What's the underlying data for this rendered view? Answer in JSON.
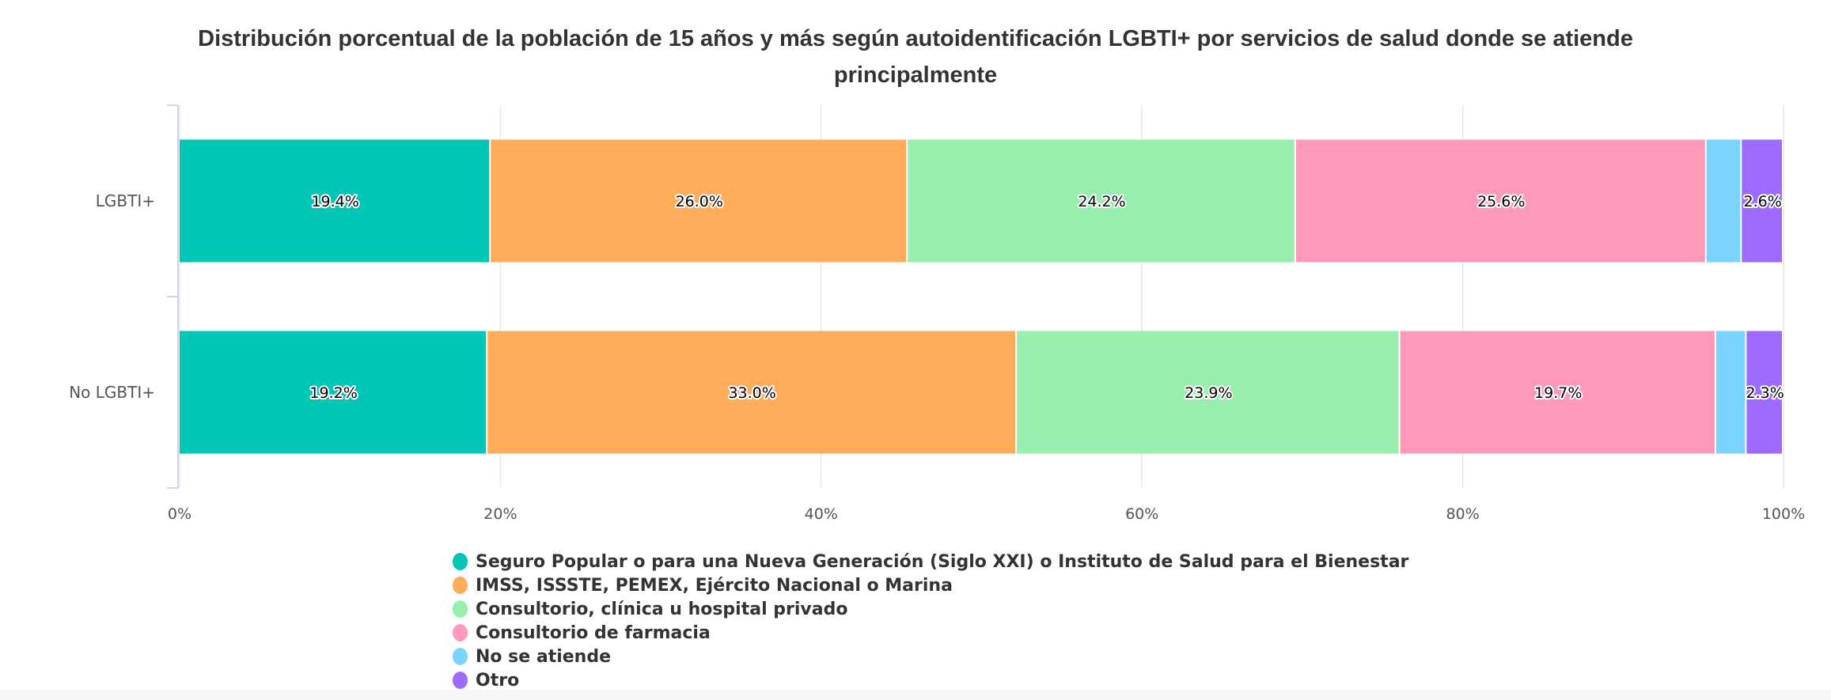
{
  "chart_data": {
    "type": "bar",
    "orientation": "horizontal",
    "stacked": "percent",
    "title": "Distribución porcentual de la población de 15 años y más según autoidentificación LGBTI+ por servicios de salud donde se atiende principalmente",
    "title_lines": [
      "Distribución porcentual de la población de 15 años y más según autoidentificación LGBTI+ por servicios de salud donde se atiende",
      "principalmente"
    ],
    "categories": [
      "LGBTI+",
      "No LGBTI+"
    ],
    "xlim": [
      0,
      100
    ],
    "x_ticks": [
      "0%",
      "20%",
      "40%",
      "60%",
      "80%",
      "100%"
    ],
    "grid": true,
    "legend_position": "bottom",
    "series": [
      {
        "name": "Seguro Popular o para una Nueva Generación (Siglo XXI) o Instituto de Salud para el Bienestar",
        "color": "#00c6b6",
        "values": [
          19.4,
          19.2
        ],
        "labels": [
          "19.4%",
          "19.2%"
        ]
      },
      {
        "name": "IMSS, ISSSTE, PEMEX, Ejército Nacional o Marina",
        "color": "#ffad5a",
        "values": [
          26.0,
          33.0
        ],
        "labels": [
          "26.0%",
          "33.0%"
        ]
      },
      {
        "name": "Consultorio, clínica u hospital privado",
        "color": "#98eeac",
        "values": [
          24.2,
          23.9
        ],
        "labels": [
          "24.2%",
          "23.9%"
        ]
      },
      {
        "name": "Consultorio de farmacia",
        "color": "#ff99ba",
        "values": [
          25.6,
          19.7
        ],
        "labels": [
          "25.6%",
          "19.7%"
        ]
      },
      {
        "name": "No se atiende",
        "color": "#7ad4ff",
        "values": [
          2.2,
          1.9
        ],
        "labels": [
          "",
          ""
        ]
      },
      {
        "name": "Otro",
        "color": "#9d6bff",
        "values": [
          2.6,
          2.3
        ],
        "labels": [
          "2.6%",
          "2.3%"
        ]
      }
    ]
  }
}
